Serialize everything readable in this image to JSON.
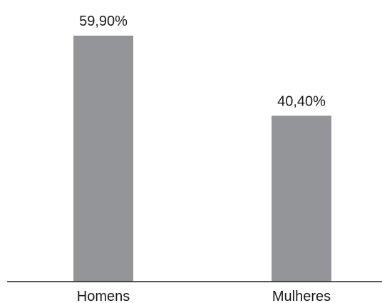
{
  "chart_data": {
    "type": "bar",
    "categories": [
      "Homens",
      "Mulheres"
    ],
    "values": [
      59.9,
      40.4
    ],
    "data_labels": [
      "59,90%",
      "40,40%"
    ],
    "ylim": [
      0,
      60.25
    ],
    "grid": false,
    "legend": "none",
    "colors": {
      "bar": "#939598",
      "axis": "#231f20",
      "text": "#1a1a1a"
    }
  }
}
